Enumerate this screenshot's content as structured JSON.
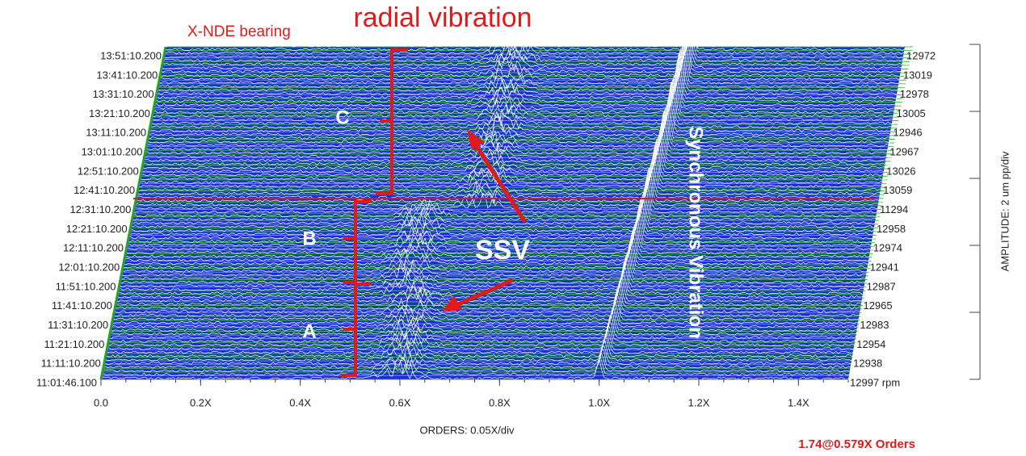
{
  "chart_data": {
    "type": "waterfall",
    "title": "radial vibration",
    "subtitle": "X-NDE bearing",
    "x_label": "ORDERS: 0.05X/div",
    "y2_label": "AMPLITUDE: 2 um pp/div",
    "readout": "1.74@0.579X Orders",
    "xlim": [
      0,
      1.5
    ],
    "xticks": [
      {
        "value": 0,
        "label": "0.0"
      },
      {
        "value": 0.2,
        "label": "0.2X"
      },
      {
        "value": 0.4,
        "label": "0.4X"
      },
      {
        "value": 0.6,
        "label": "0.6X"
      },
      {
        "value": 0.8,
        "label": "0.8X"
      },
      {
        "value": 1.0,
        "label": "1.0X"
      },
      {
        "value": 1.2,
        "label": "1.2X"
      },
      {
        "value": 1.4,
        "label": "1.4X"
      }
    ],
    "times": [
      "13:51:10.200",
      "13:41:10.200",
      "13:31:10.200",
      "13:21:10.200",
      "13:11:10.200",
      "13:01:10.200",
      "12:51:10.200",
      "12:41:10.200",
      "12:31:10.200",
      "12:21:10.200",
      "12:11:10.200",
      "12:01:10.200",
      "11:51:10.200",
      "11:41:10.200",
      "11:31:10.200",
      "11:21:10.200",
      "11:11:10.200",
      "11:01:46.100"
    ],
    "rpm_labels": [
      "12972",
      "13019",
      "12978",
      "13005",
      "12946",
      "12967",
      "13026",
      "13059",
      "11294",
      "12958",
      "12974",
      "12941",
      "12987",
      "12965",
      "12983",
      "12954",
      "12938",
      "12997 rpm"
    ],
    "annotations": {
      "a": "A",
      "b": "B",
      "c": "C",
      "ssv": "SSV",
      "sync": "Synchronous Vibration"
    }
  }
}
